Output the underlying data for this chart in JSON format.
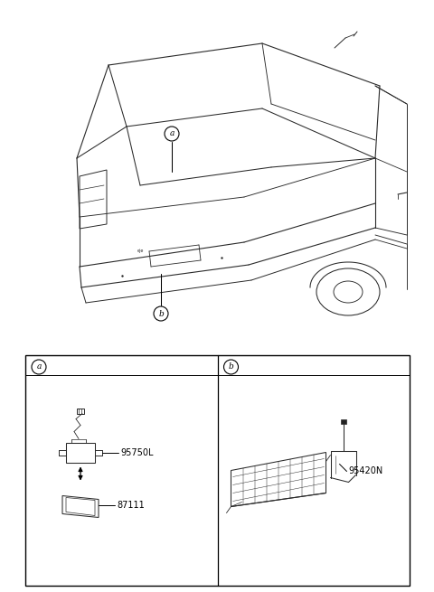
{
  "bg_color": "#ffffff",
  "fig_width": 4.8,
  "fig_height": 6.55,
  "dpi": 100,
  "label_a": "a",
  "label_b": "b",
  "part_a_labels": [
    "95750L",
    "87111"
  ],
  "part_b_labels": [
    "95420N"
  ],
  "line_color": "#2a2a2a",
  "box_color": "#000000",
  "label_font_size": 7.5,
  "part_font_size": 7.0,
  "car_lw": 0.75
}
